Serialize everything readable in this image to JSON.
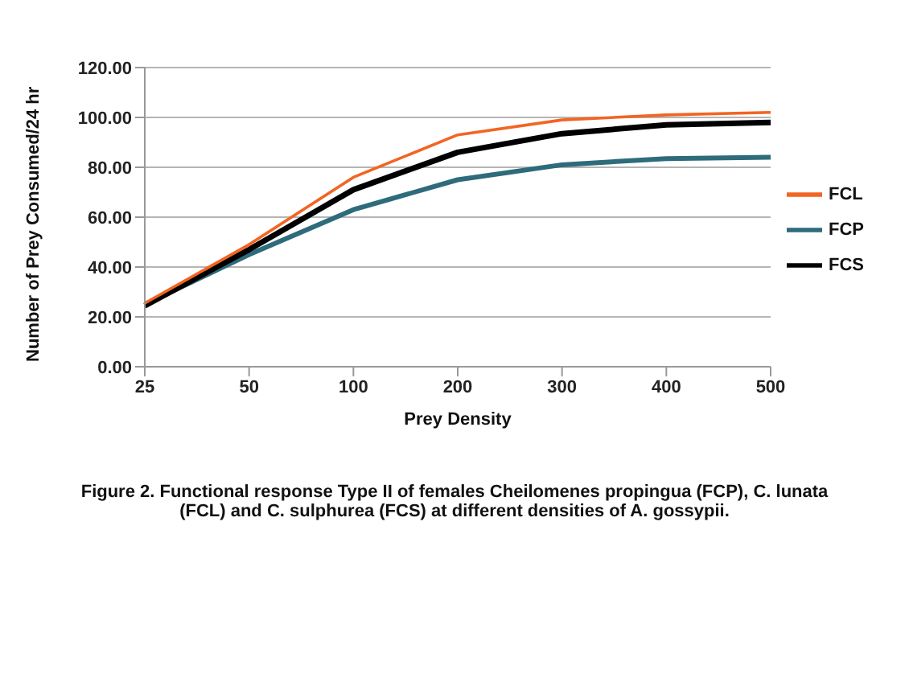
{
  "chart_data": {
    "type": "line",
    "xlabel": "Prey Density",
    "ylabel": "Number of Prey Consumed/24 hr",
    "categories": [
      "25",
      "50",
      "100",
      "200",
      "300",
      "400",
      "500"
    ],
    "series": [
      {
        "name": "FCP",
        "color": "#2e6b7b",
        "values": [
          25,
          45,
          63,
          75,
          81,
          83.5,
          84
        ]
      },
      {
        "name": "FCS",
        "color": "#000000",
        "values": [
          24.5,
          47,
          71,
          86,
          93.5,
          97,
          98
        ]
      },
      {
        "name": "FCL",
        "color": "#f26522",
        "values": [
          25.5,
          49,
          76,
          93,
          99,
          101,
          102
        ]
      }
    ],
    "ylim": [
      0,
      120
    ],
    "yticks": [
      {
        "value": 0,
        "label": "0.00"
      },
      {
        "value": 20,
        "label": "20.00"
      },
      {
        "value": 40,
        "label": "40.00"
      },
      {
        "value": 60,
        "label": "60.00"
      },
      {
        "value": 80,
        "label": "80.00"
      },
      {
        "value": 100,
        "label": "100.00"
      },
      {
        "value": 120,
        "label": "120.00"
      }
    ],
    "grid": "y",
    "legend": "right",
    "marker": "none",
    "line_style": "solid",
    "annotations": [
      "Figure 2. Functional response Type II of females Cheilomenes propingua (FCP), C. lunata (FCL) and C. sulphurea (FCS) at different densities of A. gossypii."
    ]
  }
}
